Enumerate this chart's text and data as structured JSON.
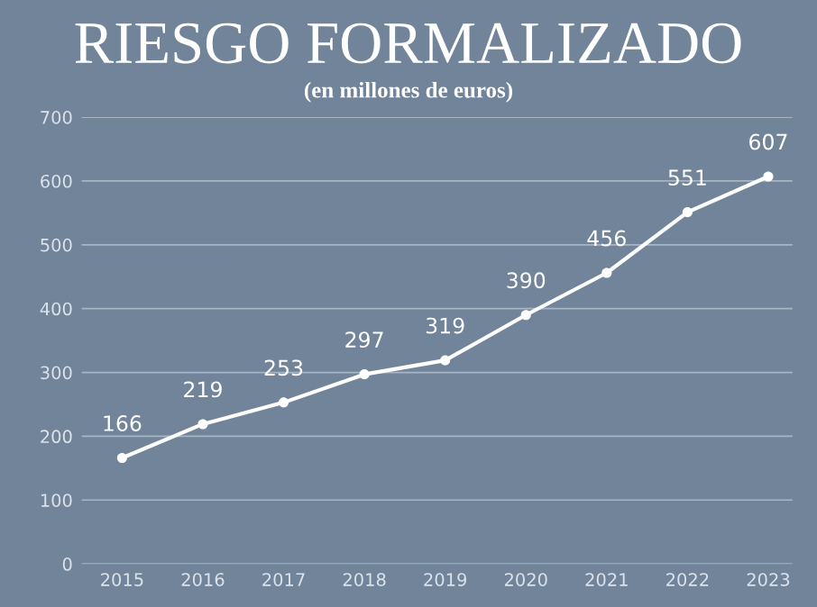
{
  "chart_data": {
    "type": "line",
    "title": "RIESGO FORMALIZADO",
    "subtitle": "(en millones de euros)",
    "categories": [
      "2015",
      "2016",
      "2017",
      "2018",
      "2019",
      "2020",
      "2021",
      "2022",
      "2023"
    ],
    "series": [
      {
        "color": "#ffffff",
        "values": [
          166,
          219,
          253,
          297,
          319,
          390,
          456,
          551,
          607
        ]
      }
    ],
    "ylim": [
      0,
      700
    ],
    "yticks": [
      0,
      100,
      200,
      300,
      400,
      500,
      600,
      700
    ],
    "grid": "y",
    "marker": "circle",
    "line_style": "solid",
    "data_labels": true,
    "legend": false
  }
}
